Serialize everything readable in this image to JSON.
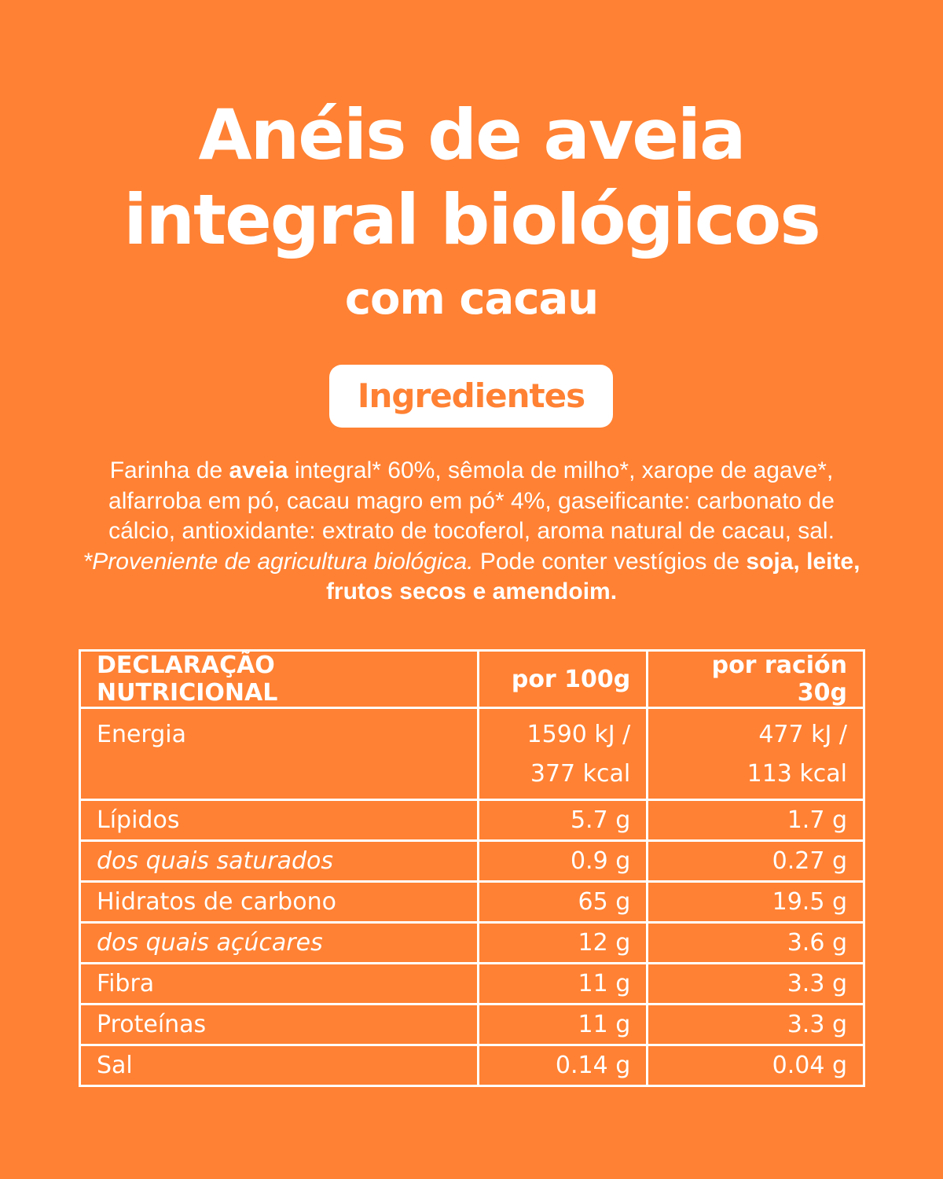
{
  "title": {
    "line1": "Anéis de aveia",
    "line2": "integral biológicos",
    "subtitle": "com cacau"
  },
  "ingredients": {
    "heading": "Ingredientes",
    "segments": [
      {
        "text": "Farinha de ",
        "style": "normal"
      },
      {
        "text": "aveia",
        "style": "bold"
      },
      {
        "text": " integral* 60%, sêmola de milho*, xarope de agave*, alfarroba em pó, cacau magro em pó* 4%, gaseificante: carbonato de cálcio, antioxidante: extrato de tocoferol, aroma natural de cacau, sal. ",
        "style": "normal"
      },
      {
        "text": "*Proveniente de agricultura biológica.",
        "style": "italic"
      },
      {
        "text": " Pode conter vestígios de ",
        "style": "normal"
      },
      {
        "text": "soja, leite, frutos secos e amendoim.",
        "style": "bold"
      }
    ]
  },
  "nutrition": {
    "headers": [
      "DECLARAÇÃO NUTRICIONAL",
      "por 100g",
      "por ración 30g"
    ],
    "rows": [
      {
        "label": "Energia",
        "per100": [
          "1590 kJ /",
          "377 kcal"
        ],
        "perServing": [
          "477 kJ /",
          "113 kcal"
        ],
        "italic": false
      },
      {
        "label": "Lípidos",
        "per100": [
          "5.7 g"
        ],
        "perServing": [
          "1.7 g"
        ],
        "italic": false
      },
      {
        "label": "dos quais saturados",
        "per100": [
          "0.9 g"
        ],
        "perServing": [
          "0.27 g"
        ],
        "italic": true
      },
      {
        "label": "Hidratos de carbono",
        "per100": [
          "65 g"
        ],
        "perServing": [
          "19.5 g"
        ],
        "italic": false
      },
      {
        "label": "dos quais açúcares",
        "per100": [
          "12 g"
        ],
        "perServing": [
          "3.6 g"
        ],
        "italic": true
      },
      {
        "label": "Fibra",
        "per100": [
          "11 g"
        ],
        "perServing": [
          "3.3 g"
        ],
        "italic": false
      },
      {
        "label": "Proteínas",
        "per100": [
          "11 g"
        ],
        "perServing": [
          "3.3 g"
        ],
        "italic": false
      },
      {
        "label": "Sal",
        "per100": [
          "0.14 g"
        ],
        "perServing": [
          "0.04 g"
        ],
        "italic": false
      }
    ]
  },
  "colors": {
    "background": "#FF8133",
    "foreground": "#FFFFFF"
  }
}
